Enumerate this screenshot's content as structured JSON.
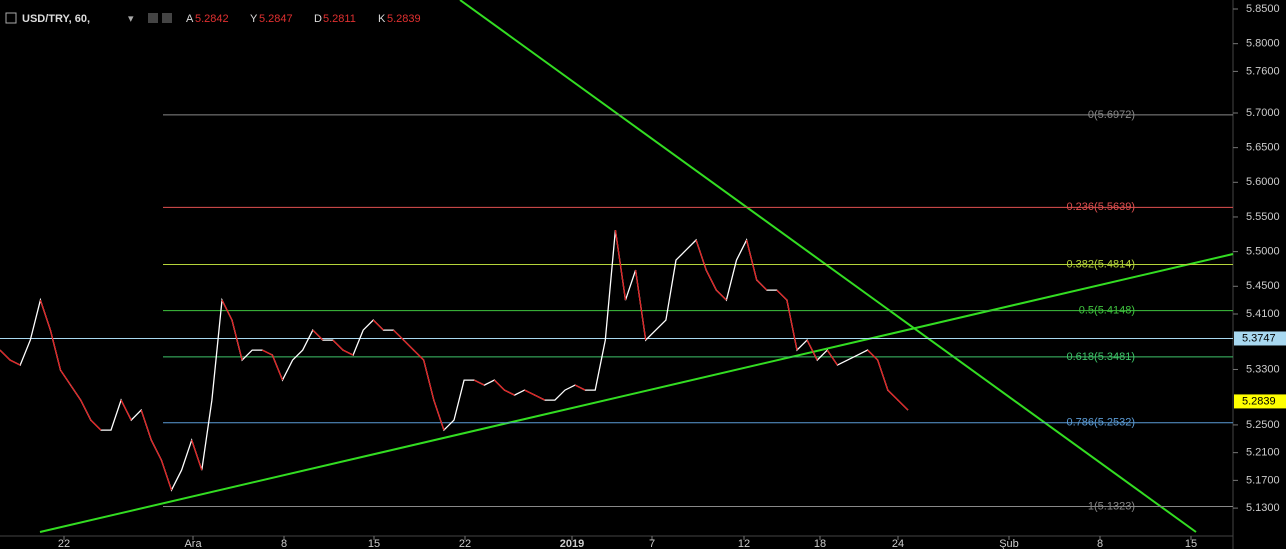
{
  "chart_data": {
    "type": "line",
    "symbol": "USD/TRY, 60,",
    "ohlc": [
      {
        "key": "A",
        "value": "5.2842"
      },
      {
        "key": "Y",
        "value": "5.2847"
      },
      {
        "key": "D",
        "value": "5.2811"
      },
      {
        "key": "K",
        "value": "5.2839"
      }
    ],
    "x_labels": [
      "22",
      "Ara",
      "8",
      "15",
      "22",
      "2019",
      "7",
      "12",
      "18",
      "24",
      "Şub",
      "8",
      "15"
    ],
    "values": [
      5.3579,
      5.3435,
      5.3363,
      5.3724,
      5.4301,
      5.3868,
      5.3291,
      5.3075,
      5.2858,
      5.2569,
      5.2425,
      5.2425,
      5.2858,
      5.2569,
      5.2714,
      5.2281,
      5.1992,
      5.1559,
      5.1848,
      5.2281,
      5.1848,
      5.2858,
      5.4301,
      5.4012,
      5.3435,
      5.3579,
      5.3579,
      5.3507,
      5.3147,
      5.3435,
      5.3579,
      5.3868,
      5.3724,
      5.3724,
      5.3579,
      5.3507,
      5.3868,
      5.4012,
      5.3868,
      5.3868,
      5.3724,
      5.3579,
      5.3435,
      5.2858,
      5.2425,
      5.2569,
      5.3147,
      5.3147,
      5.3075,
      5.3147,
      5.3002,
      5.293,
      5.3002,
      5.293,
      5.2858,
      5.2858,
      5.3002,
      5.3075,
      5.3002,
      5.3002,
      5.3724,
      5.5311,
      5.4301,
      5.4734,
      5.3724,
      5.3868,
      5.4012,
      5.4878,
      5.5022,
      5.5167,
      5.4734,
      5.4445,
      5.4301,
      5.4878,
      5.5167,
      5.459,
      5.4445,
      5.4445,
      5.4301,
      5.3579,
      5.3724,
      5.3435,
      5.3579,
      5.3363,
      5.3435,
      5.3507,
      5.3579,
      5.3435,
      5.3002,
      5.2858,
      5.2714
    ],
    "color": "#ffffff",
    "ylim": [
      5.071,
      5.863
    ],
    "yticks": [
      {
        "value": 5.85,
        "label": "5.8500"
      },
      {
        "value": 5.8,
        "label": "5.8000"
      },
      {
        "value": 5.76,
        "label": "5.7600"
      },
      {
        "value": 5.7,
        "label": "5.7000"
      },
      {
        "value": 5.65,
        "label": "5.6500"
      },
      {
        "value": 5.6,
        "label": "5.6000"
      },
      {
        "value": 5.55,
        "label": "5.5500"
      },
      {
        "value": 5.5,
        "label": "5.5000"
      },
      {
        "value": 5.45,
        "label": "5.4500"
      },
      {
        "value": 5.41,
        "label": "5.4100"
      },
      {
        "value": 5.33,
        "label": "5.3300"
      },
      {
        "value": 5.25,
        "label": "5.2500"
      },
      {
        "value": 5.21,
        "label": "5.2100"
      },
      {
        "value": 5.17,
        "label": "5.1700"
      },
      {
        "value": 5.13,
        "label": "5.1300"
      }
    ],
    "fib_levels": [
      {
        "value": 5.6972,
        "label": "0(5.6972)",
        "color": "#888888"
      },
      {
        "value": 5.5639,
        "label": "0.236(5.5639)",
        "color": "#e05050"
      },
      {
        "value": 5.4814,
        "label": "0.382(5.4814)",
        "color": "#b5d43a"
      },
      {
        "value": 5.4148,
        "label": "0.5(5.4148)",
        "color": "#3fc43f"
      },
      {
        "value": 5.3481,
        "label": "0.618(5.3481)",
        "color": "#3fc46a"
      },
      {
        "value": 5.2532,
        "label": "0.786(5.2532)",
        "color": "#5b9bd5"
      },
      {
        "value": 5.1323,
        "label": "1(5.1323)",
        "color": "#888888"
      }
    ],
    "price_tags": [
      {
        "value": 5.3747,
        "label": "5.3747",
        "color": "#a8d8f0"
      },
      {
        "value": 5.2839,
        "label": "5.2839",
        "color": "#ffff00"
      }
    ]
  }
}
